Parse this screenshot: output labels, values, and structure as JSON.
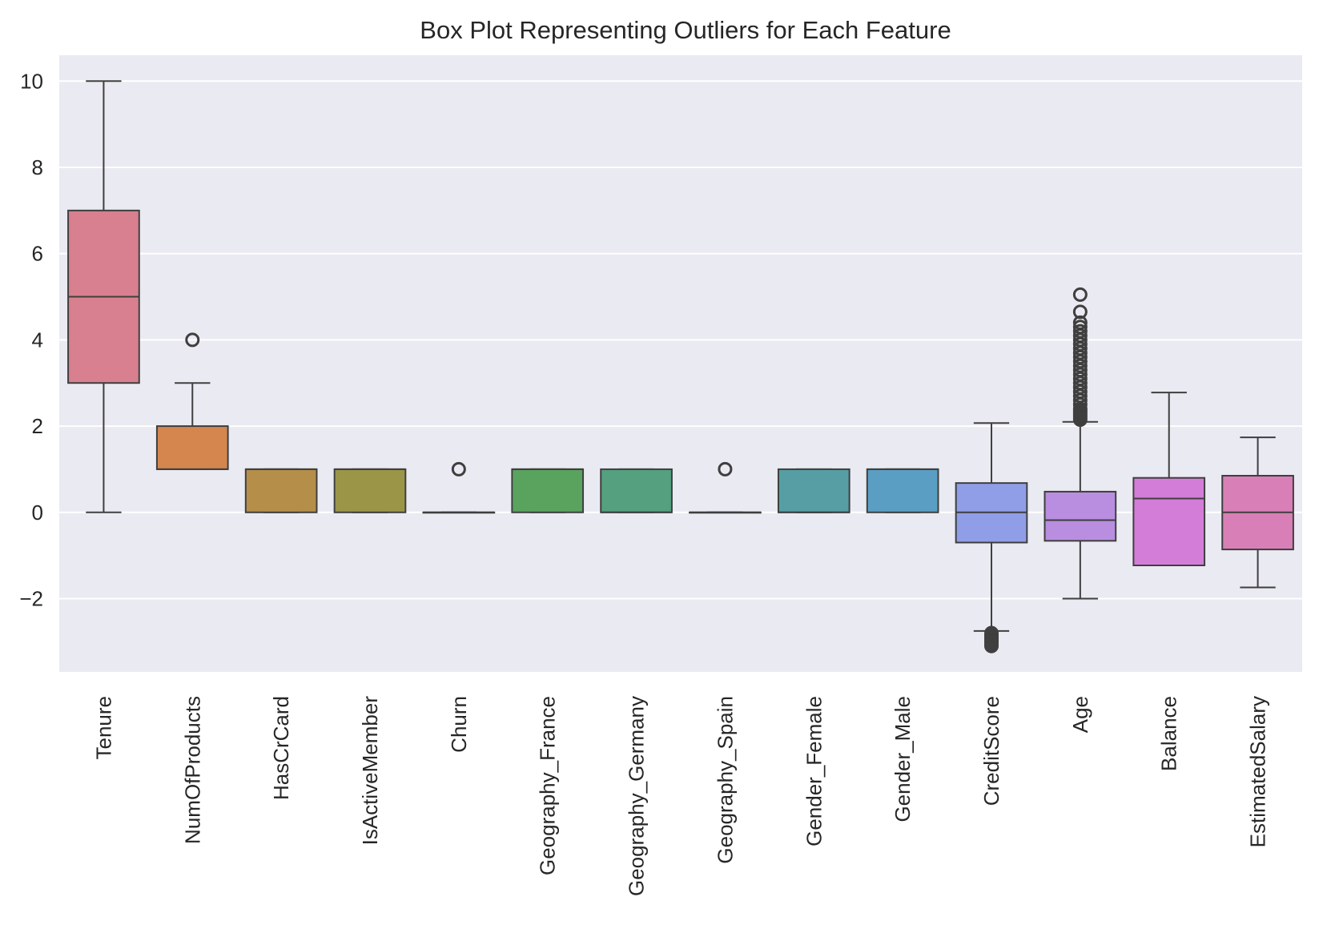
{
  "chart_data": {
    "type": "box",
    "title": "Box Plot Representing Outliers for Each Feature",
    "xlabel": "",
    "ylabel": "",
    "ylim": [
      -3.7,
      10.6
    ],
    "yticks": [
      -2,
      0,
      2,
      4,
      6,
      8,
      10
    ],
    "ytick_labels": [
      "−2",
      "0",
      "2",
      "4",
      "6",
      "8",
      "10"
    ],
    "grid": true,
    "categories": [
      "Tenure",
      "NumOfProducts",
      "HasCrCard",
      "IsActiveMember",
      "Churn",
      "Geography_France",
      "Geography_Germany",
      "Geography_Spain",
      "Gender_Female",
      "Gender_Male",
      "CreditScore",
      "Age",
      "Balance",
      "EstimatedSalary"
    ],
    "boxes": [
      {
        "category": "Tenure",
        "whisker_low": 0,
        "q1": 3,
        "median": 5,
        "q3": 7,
        "whisker_high": 10,
        "outliers": [],
        "color": "#d8808f"
      },
      {
        "category": "NumOfProducts",
        "whisker_low": 1,
        "q1": 1,
        "median": 1,
        "q3": 2,
        "whisker_high": 3,
        "outliers": [
          4
        ],
        "color": "#d4864e"
      },
      {
        "category": "HasCrCard",
        "whisker_low": 0,
        "q1": 0,
        "median": 1,
        "q3": 1,
        "whisker_high": 1,
        "outliers": [],
        "color": "#b58e4a"
      },
      {
        "category": "IsActiveMember",
        "whisker_low": 0,
        "q1": 0,
        "median": 1,
        "q3": 1,
        "whisker_high": 1,
        "outliers": [],
        "color": "#9b9548"
      },
      {
        "category": "Churn",
        "whisker_low": 0,
        "q1": 0,
        "median": 0,
        "q3": 0,
        "whisker_high": 0,
        "outliers": [
          1
        ],
        "color": "#7f9c4a"
      },
      {
        "category": "Geography_France",
        "whisker_low": 0,
        "q1": 0,
        "median": 1,
        "q3": 1,
        "whisker_high": 1,
        "outliers": [],
        "color": "#5aa35e"
      },
      {
        "category": "Geography_Germany",
        "whisker_low": 0,
        "q1": 0,
        "median": 0,
        "q3": 1,
        "whisker_high": 1,
        "outliers": [],
        "color": "#54a07f"
      },
      {
        "category": "Geography_Spain",
        "whisker_low": 0,
        "q1": 0,
        "median": 0,
        "q3": 0,
        "whisker_high": 0,
        "outliers": [
          1
        ],
        "color": "#549f91"
      },
      {
        "category": "Gender_Female",
        "whisker_low": 0,
        "q1": 0,
        "median": 0,
        "q3": 1,
        "whisker_high": 1,
        "outliers": [],
        "color": "#579ea4"
      },
      {
        "category": "Gender_Male",
        "whisker_low": 0,
        "q1": 0,
        "median": 1,
        "q3": 1,
        "whisker_high": 1,
        "outliers": [],
        "color": "#5b9ec4"
      },
      {
        "category": "CreditScore",
        "whisker_low": -2.75,
        "q1": -0.7,
        "median": 0,
        "q3": 0.68,
        "whisker_high": 2.07,
        "outliers": [
          -2.8,
          -2.85,
          -2.9,
          -2.95,
          -3.0,
          -3.05,
          -3.1
        ],
        "color": "#8f9ee6"
      },
      {
        "category": "Age",
        "whisker_low": -2.0,
        "q1": -0.66,
        "median": -0.18,
        "q3": 0.48,
        "whisker_high": 2.1,
        "outliers": [
          2.15,
          2.2,
          2.25,
          2.3,
          2.35,
          2.4,
          2.5,
          2.6,
          2.7,
          2.8,
          2.9,
          3.0,
          3.1,
          3.2,
          3.3,
          3.4,
          3.5,
          3.6,
          3.7,
          3.8,
          3.9,
          4.0,
          4.1,
          4.2,
          4.3,
          4.4,
          4.65,
          5.05
        ],
        "color": "#b98ee0"
      },
      {
        "category": "Balance",
        "whisker_low": -1.23,
        "q1": -1.23,
        "median": 0.32,
        "q3": 0.8,
        "whisker_high": 2.78,
        "outliers": [],
        "color": "#d47dd8"
      },
      {
        "category": "EstimatedSalary",
        "whisker_low": -1.74,
        "q1": -0.86,
        "median": 0,
        "q3": 0.85,
        "whisker_high": 1.74,
        "outliers": [],
        "color": "#d97fb7"
      }
    ]
  }
}
